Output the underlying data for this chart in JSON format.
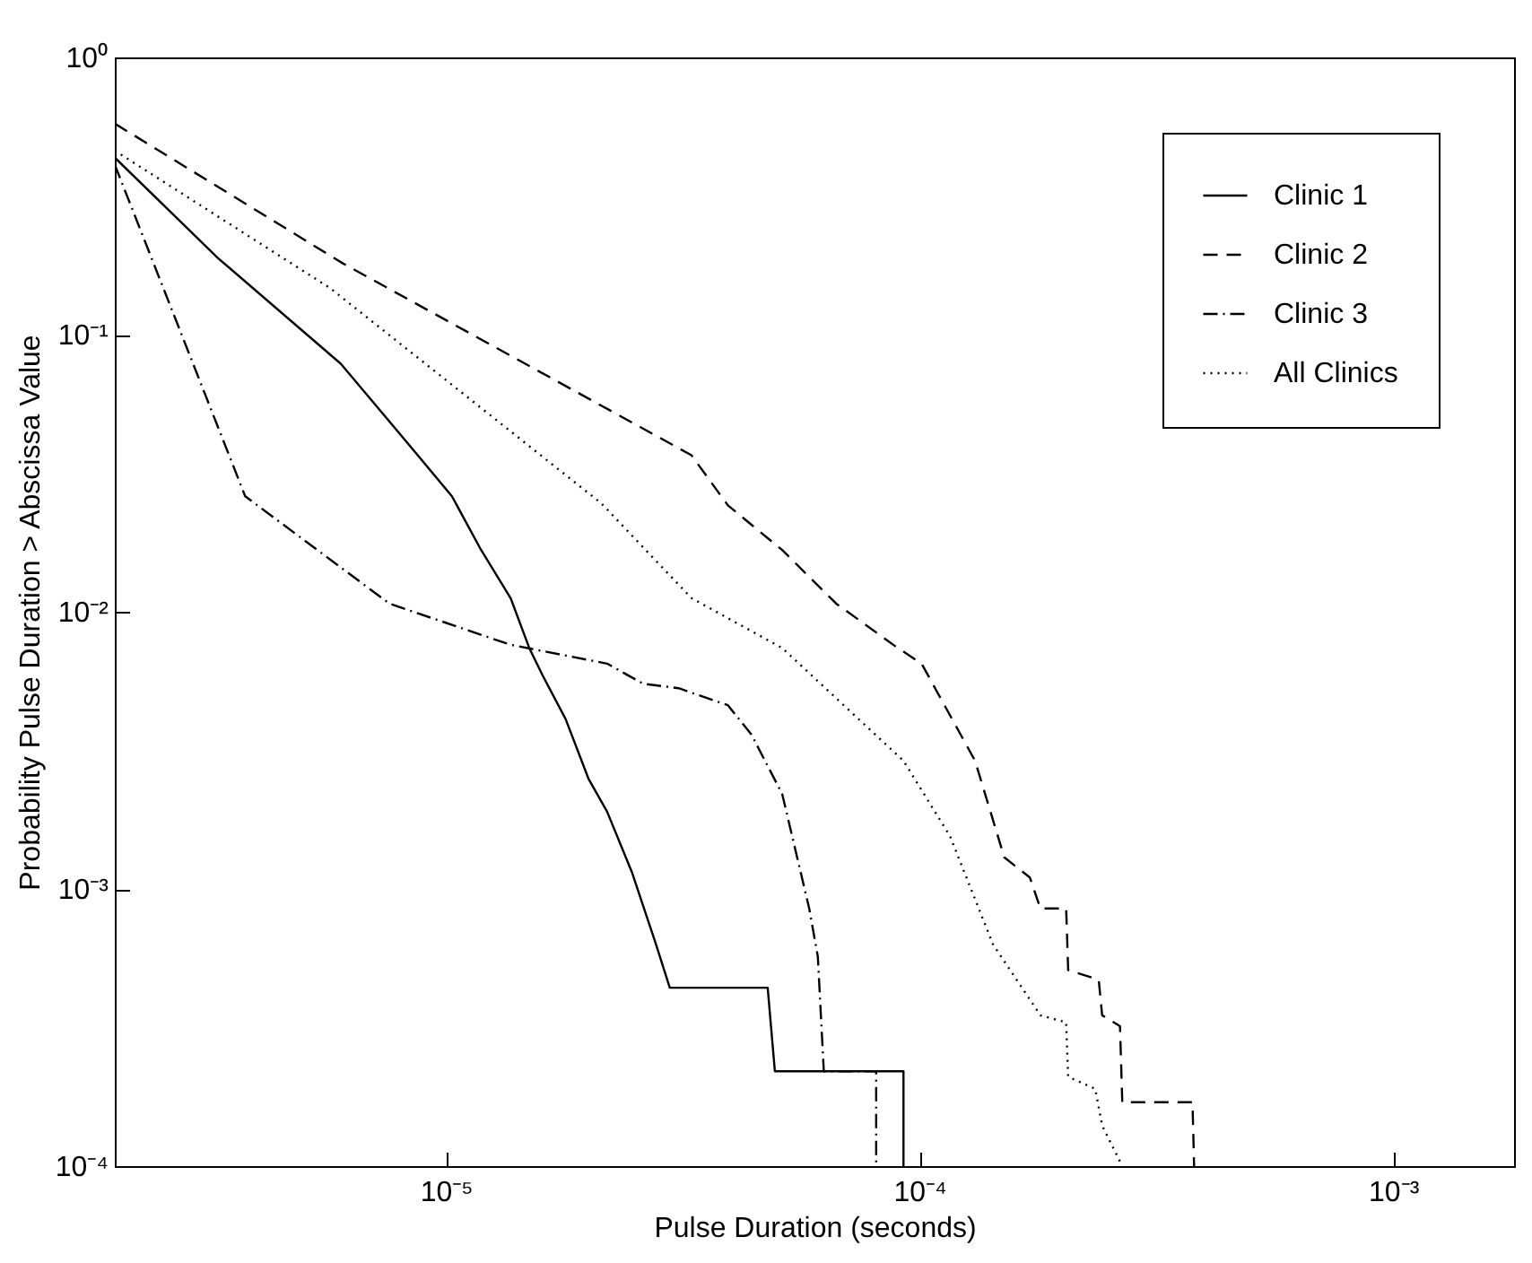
{
  "chart_data": {
    "type": "line",
    "xlabel": "Pulse Duration (seconds)",
    "ylabel": "Probability Pulse Duration > Abscissa Value",
    "log": "xy",
    "grid": false,
    "legend": "top right",
    "xlim": [
      2e-06,
      0.0018
    ],
    "xticks": [
      {
        "value": 1e-05,
        "label": "10⁻⁵"
      },
      {
        "value": 0.0001,
        "label": "10⁻⁴"
      },
      {
        "value": 0.001,
        "label": "10⁻³"
      }
    ],
    "ylim": [
      0.0001,
      1
    ],
    "yticks": [
      {
        "value": 0.0001,
        "label": "10⁻⁴"
      },
      {
        "value": 0.001,
        "label": "10⁻³"
      },
      {
        "value": 0.01,
        "label": "10⁻²"
      },
      {
        "value": 0.1,
        "label": "10⁻¹"
      },
      {
        "value": 1,
        "label": "10⁰"
      }
    ],
    "series": [
      {
        "name": "Clinic 1",
        "color": "#000000",
        "line_style": "solid",
        "x": [
          2e-06,
          3.3e-06,
          6e-06,
          8.1e-06,
          1.03e-05,
          1.18e-05,
          1.37e-05,
          1.5e-05,
          1.6e-05,
          1.79e-05,
          2e-05,
          2.19e-05,
          2.47e-05,
          2.77e-05,
          2.97e-05,
          4.78e-05,
          4.95e-05,
          9.25e-05,
          9.25e-05
        ],
        "values": [
          0.435,
          0.189,
          0.0785,
          0.0427,
          0.0261,
          0.017,
          0.0112,
          0.0074,
          0.0059,
          0.0041,
          0.0025,
          0.0019,
          0.00115,
          0.00064,
          0.00044,
          0.00044,
          0.00022,
          0.00022,
          0.0001
        ]
      },
      {
        "name": "Clinic 2",
        "color": "#000000",
        "line_style": "dashed",
        "x": [
          2e-06,
          6.05e-06,
          3.3e-05,
          3.94e-05,
          5.13e-05,
          6.67e-05,
          8.9e-05,
          0.000101,
          0.000131,
          0.000151,
          0.000171,
          0.00018,
          0.000204,
          0.000206,
          0.000239,
          0.000243,
          0.000265,
          0.000268,
          0.000377,
          0.00038
        ],
        "values": [
          0.577,
          0.181,
          0.0367,
          0.0242,
          0.0167,
          0.0107,
          0.0075,
          0.0065,
          0.0029,
          0.0013,
          0.0011,
          0.00085,
          0.00085,
          0.00051,
          0.00047,
          0.00035,
          0.00032,
          0.00017,
          0.00017,
          0.0001
        ]
      },
      {
        "name": "Clinic 3",
        "color": "#000000",
        "line_style": "dashdot",
        "x": [
          2e-06,
          3.77e-06,
          7.6e-06,
          1.37e-05,
          2.19e-05,
          2.61e-05,
          3.1e-05,
          3.94e-05,
          4.42e-05,
          5.13e-05,
          5.46e-05,
          5.85e-05,
          6.1e-05,
          6.28e-05,
          8.1e-05,
          8.1e-05
        ],
        "values": [
          0.41,
          0.0261,
          0.0107,
          0.0076,
          0.0065,
          0.0055,
          0.0053,
          0.0046,
          0.0036,
          0.0022,
          0.0014,
          0.00085,
          0.00057,
          0.00022,
          0.00022,
          0.0001
        ]
      },
      {
        "name": "All Clinics",
        "color": "#000000",
        "line_style": "dotted",
        "x": [
          2e-06,
          5.7e-06,
          2.13e-05,
          3.3e-05,
          5.13e-05,
          9.25e-05,
          0.000116,
          0.000143,
          0.00018,
          0.000204,
          0.000206,
          0.000235,
          0.000243,
          0.000268
        ],
        "values": [
          0.461,
          0.147,
          0.0246,
          0.0112,
          0.0074,
          0.0029,
          0.00155,
          0.00063,
          0.00035,
          0.00033,
          0.00021,
          0.00019,
          0.00014,
          0.0001
        ]
      }
    ]
  }
}
